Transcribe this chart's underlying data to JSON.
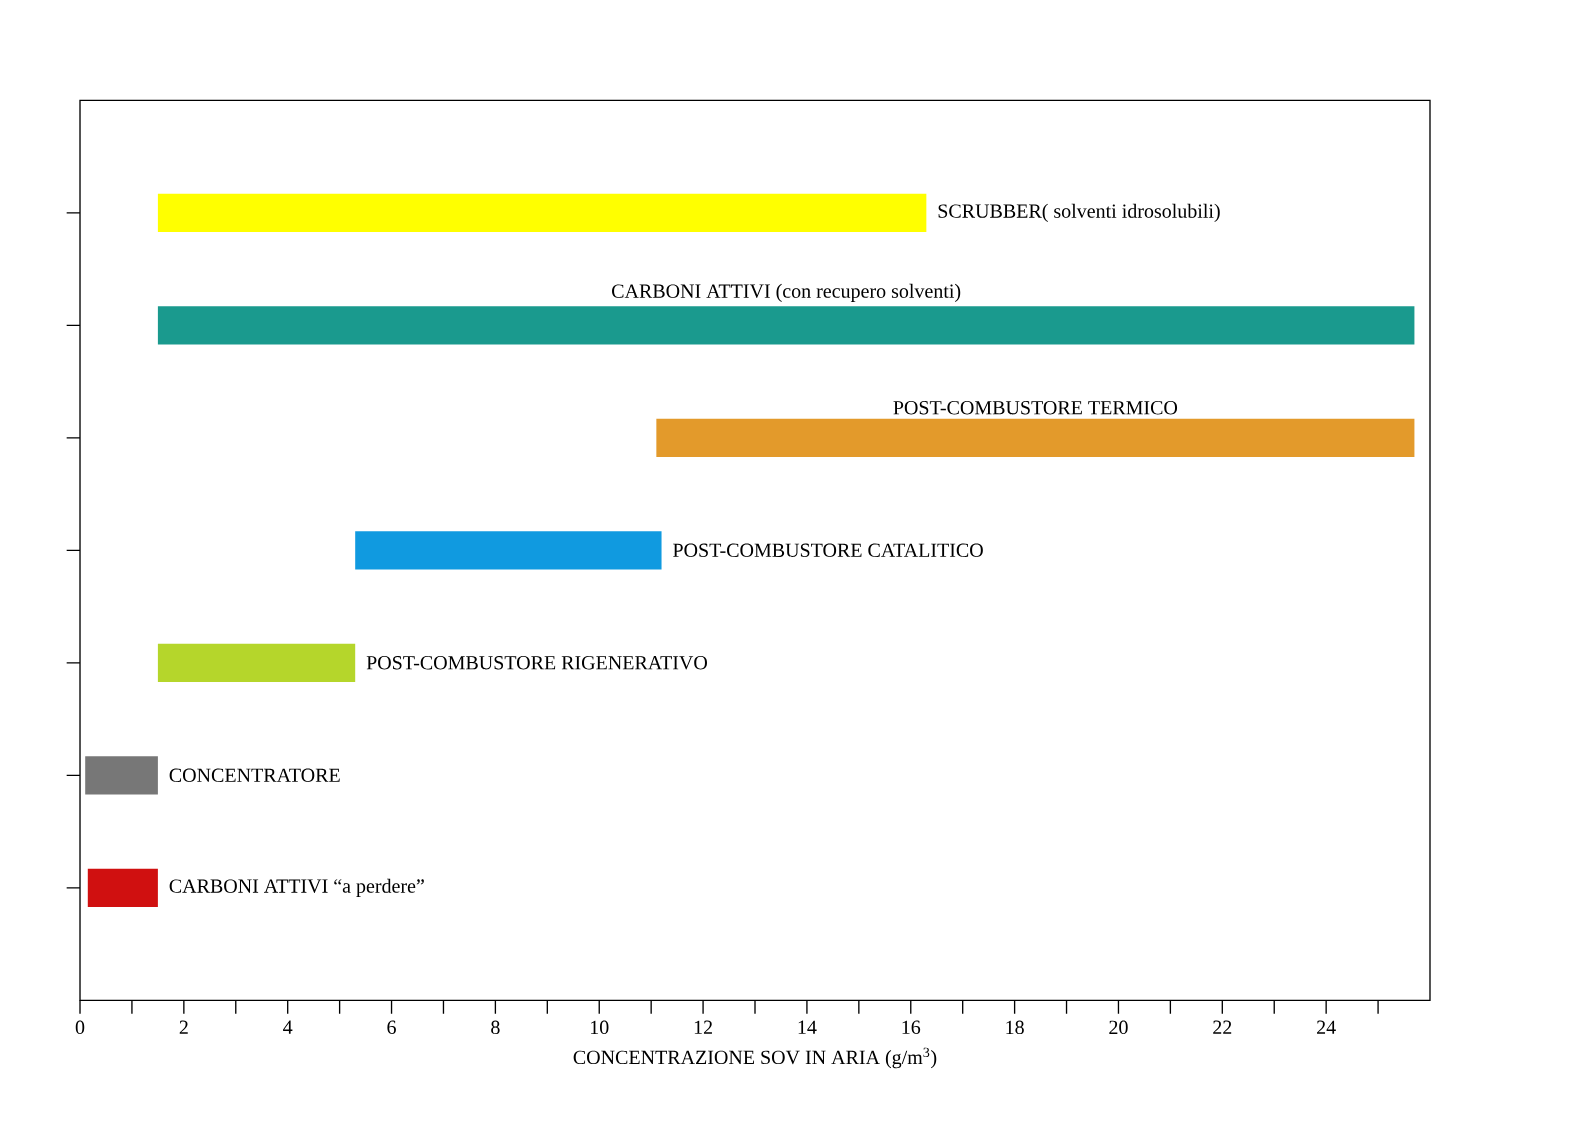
{
  "chart_data": {
    "type": "bar",
    "orientation": "horizontal",
    "xlabel": "CONCENTRAZIONE SOV IN ARIA (g/m$^{3}$)",
    "categories": [
      "SCRUBBER( solventi idrosolubili)",
      "CARBONI ATTIVI (con recupero solventi)",
      "POST-COMBUSTORE TERMICO",
      "POST-COMBUSTORE CATALITICO",
      "POST-COMBUSTORE RIGENERATIVO",
      "CONCENTRATORE",
      "CARBONI ATTIVI “a perdere”"
    ],
    "base": [
      1.5,
      1.5,
      11.1,
      5.3,
      1.5,
      0.1,
      0.15
    ],
    "values": [
      14.8,
      24.2,
      14.6,
      5.9,
      3.8,
      1.4,
      1.35
    ],
    "colors": [
      "#ffff00",
      "#1a9a8e",
      "#e39a2b",
      "#109ae0",
      "#b5d62b",
      "#777777",
      "#d01010"
    ],
    "xlim": [
      0,
      26
    ],
    "xticks": [
      0,
      {
        "value": 1,
        "label": null
      },
      2,
      {
        "value": 3,
        "label": null
      },
      4,
      {
        "value": 5,
        "label": null
      },
      6,
      {
        "value": 7,
        "label": null
      },
      8,
      {
        "value": 9,
        "label": null
      },
      10,
      {
        "value": 11,
        "label": null
      },
      12,
      {
        "value": 13,
        "label": null
      },
      14,
      {
        "value": 15,
        "label": null
      },
      16,
      {
        "value": 17,
        "label": null
      },
      18,
      {
        "value": 19,
        "label": null
      },
      20,
      {
        "value": 21,
        "label": null
      },
      22,
      {
        "value": 23,
        "label": null
      },
      24,
      {
        "value": 25,
        "label": null
      }
    ],
    "tick_labels": "x",
    "grid": false
  }
}
